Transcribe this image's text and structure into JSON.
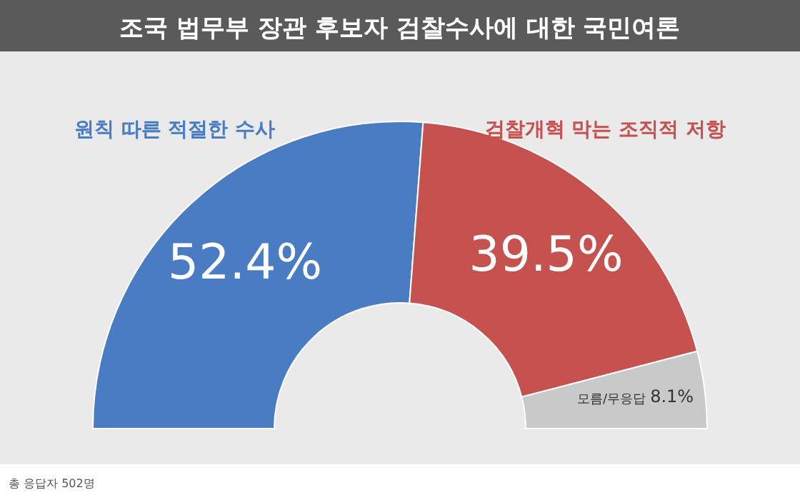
{
  "chart_data": {
    "type": "donut",
    "title": "조국 법무부 장관 후보자 검찰수사에 대한 국민여론",
    "categories": [
      "원칙 따른 적절한 수사",
      "검찰개혁 막는 조직적 저항",
      "모름/무응답"
    ],
    "values": [
      52.4,
      39.5,
      8.1
    ],
    "colors": [
      "#4a7cc4",
      "#c65250",
      "#c9c9c9"
    ],
    "value_labels": [
      "52.4%",
      "39.5%",
      "8.1%"
    ],
    "annotations": [
      "총 응답자 502명"
    ]
  }
}
